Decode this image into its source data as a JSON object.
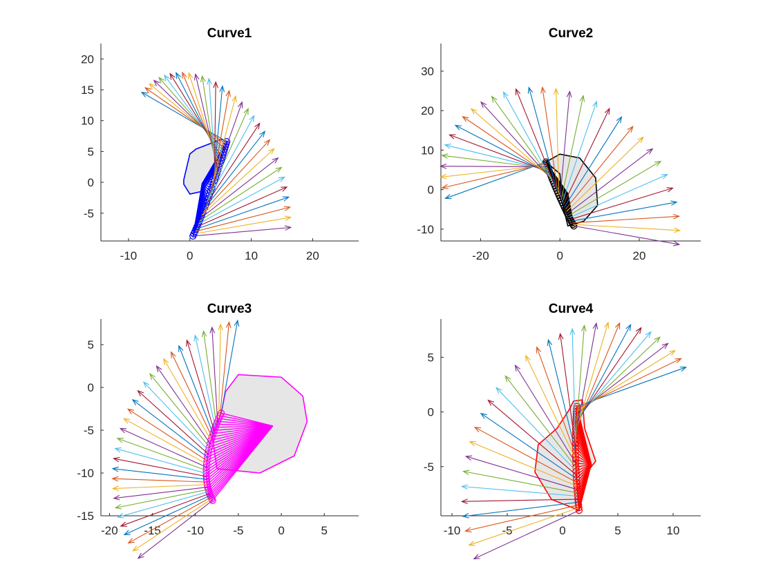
{
  "figure": {
    "background": "#ffffff"
  },
  "arrow_palette": [
    "#0072BD",
    "#D95319",
    "#EDB120",
    "#7E2F8E",
    "#77AC30",
    "#4DBEEE",
    "#A2142F"
  ],
  "chart_data": [
    {
      "type": "vector-field",
      "title": "Curve1",
      "xlim": [
        -14.5,
        27.5
      ],
      "ylim": [
        -9.5,
        22.5
      ],
      "xticks": [
        -10,
        0,
        10,
        20
      ],
      "yticks": [
        -5,
        0,
        5,
        10,
        15,
        20
      ],
      "shape_color": "#0000FF",
      "arrows": {
        "count": 32,
        "origin_start": [
          6.0,
          6.6
        ],
        "origin_end": [
          0.5,
          -8.7
        ],
        "dir_start_deg": 150,
        "dir_end_deg": 5,
        "length": 16.0
      },
      "body_polygon": [
        [
          -1.0,
          0.4
        ],
        [
          0.0,
          4.6
        ],
        [
          1.0,
          5.4
        ],
        [
          5.2,
          7.0
        ],
        [
          6.0,
          6.6
        ],
        [
          4.5,
          3.0
        ],
        [
          3.0,
          0.0
        ],
        [
          1.8,
          -1.5
        ],
        [
          0.0,
          -1.9
        ],
        [
          -1.0,
          -0.3
        ]
      ],
      "center": [
        2.0,
        -0.2
      ]
    },
    {
      "type": "vector-field",
      "title": "Curve2",
      "xlim": [
        -30.0,
        35.5
      ],
      "ylim": [
        -13.0,
        37.0
      ],
      "xticks": [
        -20,
        0,
        20
      ],
      "yticks": [
        -10,
        0,
        10,
        20,
        30
      ],
      "shape_color": "#000000",
      "arrows": {
        "count": 32,
        "origin_start": [
          -3.5,
          7.0
        ],
        "origin_end": [
          3.5,
          -9.2
        ],
        "dir_start_deg": 200,
        "dir_end_deg": -10,
        "length": 27.0
      },
      "body_polygon": [
        [
          -3.5,
          7.0
        ],
        [
          0.0,
          9.0
        ],
        [
          5.0,
          8.0
        ],
        [
          9.0,
          3.0
        ],
        [
          9.5,
          -4.0
        ],
        [
          6.0,
          -8.0
        ],
        [
          2.0,
          -9.2
        ],
        [
          0.5,
          -3.0
        ],
        [
          0.0,
          4.0
        ]
      ],
      "center": [
        2.0,
        -1.0
      ]
    },
    {
      "type": "vector-field",
      "title": "Curve3",
      "xlim": [
        -21.0,
        9.0
      ],
      "ylim": [
        -15.0,
        8.0
      ],
      "xticks": [
        -20,
        -15,
        -10,
        -5,
        0,
        5
      ],
      "yticks": [
        -15,
        -10,
        -5,
        0,
        5
      ],
      "shape_color": "#FF00FF",
      "arrows": {
        "count": 32,
        "origin_start": [
          -7.0,
          -3.0
        ],
        "origin_end": [
          -8.0,
          -13.2
        ],
        "dir_start_deg": 80,
        "dir_end_deg": 218,
        "length": 11.0
      },
      "body_polygon": [
        [
          -7.0,
          -3.0
        ],
        [
          -6.5,
          -0.5
        ],
        [
          -5.0,
          1.5
        ],
        [
          0.0,
          1.2
        ],
        [
          2.5,
          -1.0
        ],
        [
          3.0,
          -4.0
        ],
        [
          1.5,
          -8.0
        ],
        [
          -2.5,
          -10.0
        ],
        [
          -7.5,
          -9.5
        ],
        [
          -8.0,
          -6.0
        ]
      ],
      "center": [
        -1.0,
        -4.5
      ]
    },
    {
      "type": "vector-field",
      "title": "Curve4",
      "xlim": [
        -11.0,
        12.5
      ],
      "ylim": [
        -9.5,
        8.5
      ],
      "xticks": [
        -10,
        -5,
        0,
        5,
        10
      ],
      "yticks": [
        -5,
        0,
        5
      ],
      "shape_color": "#FF0000",
      "arrows": {
        "count": 32,
        "origin_start": [
          1.3,
          0.5
        ],
        "origin_end": [
          1.5,
          -9.0
        ],
        "dir_start_deg": 20,
        "dir_end_deg": 205,
        "length": 10.5
      },
      "body_polygon": [
        [
          1.0,
          1.0
        ],
        [
          1.8,
          1.1
        ],
        [
          2.0,
          -1.5
        ],
        [
          3.0,
          -4.5
        ],
        [
          2.0,
          -5.8
        ],
        [
          1.5,
          -9.0
        ],
        [
          -1.0,
          -8.0
        ],
        [
          -2.5,
          -5.5
        ],
        [
          -2.2,
          -3.0
        ],
        [
          -0.5,
          -1.5
        ],
        [
          0.6,
          0.2
        ]
      ],
      "center": [
        2.6,
        -4.8
      ]
    }
  ]
}
